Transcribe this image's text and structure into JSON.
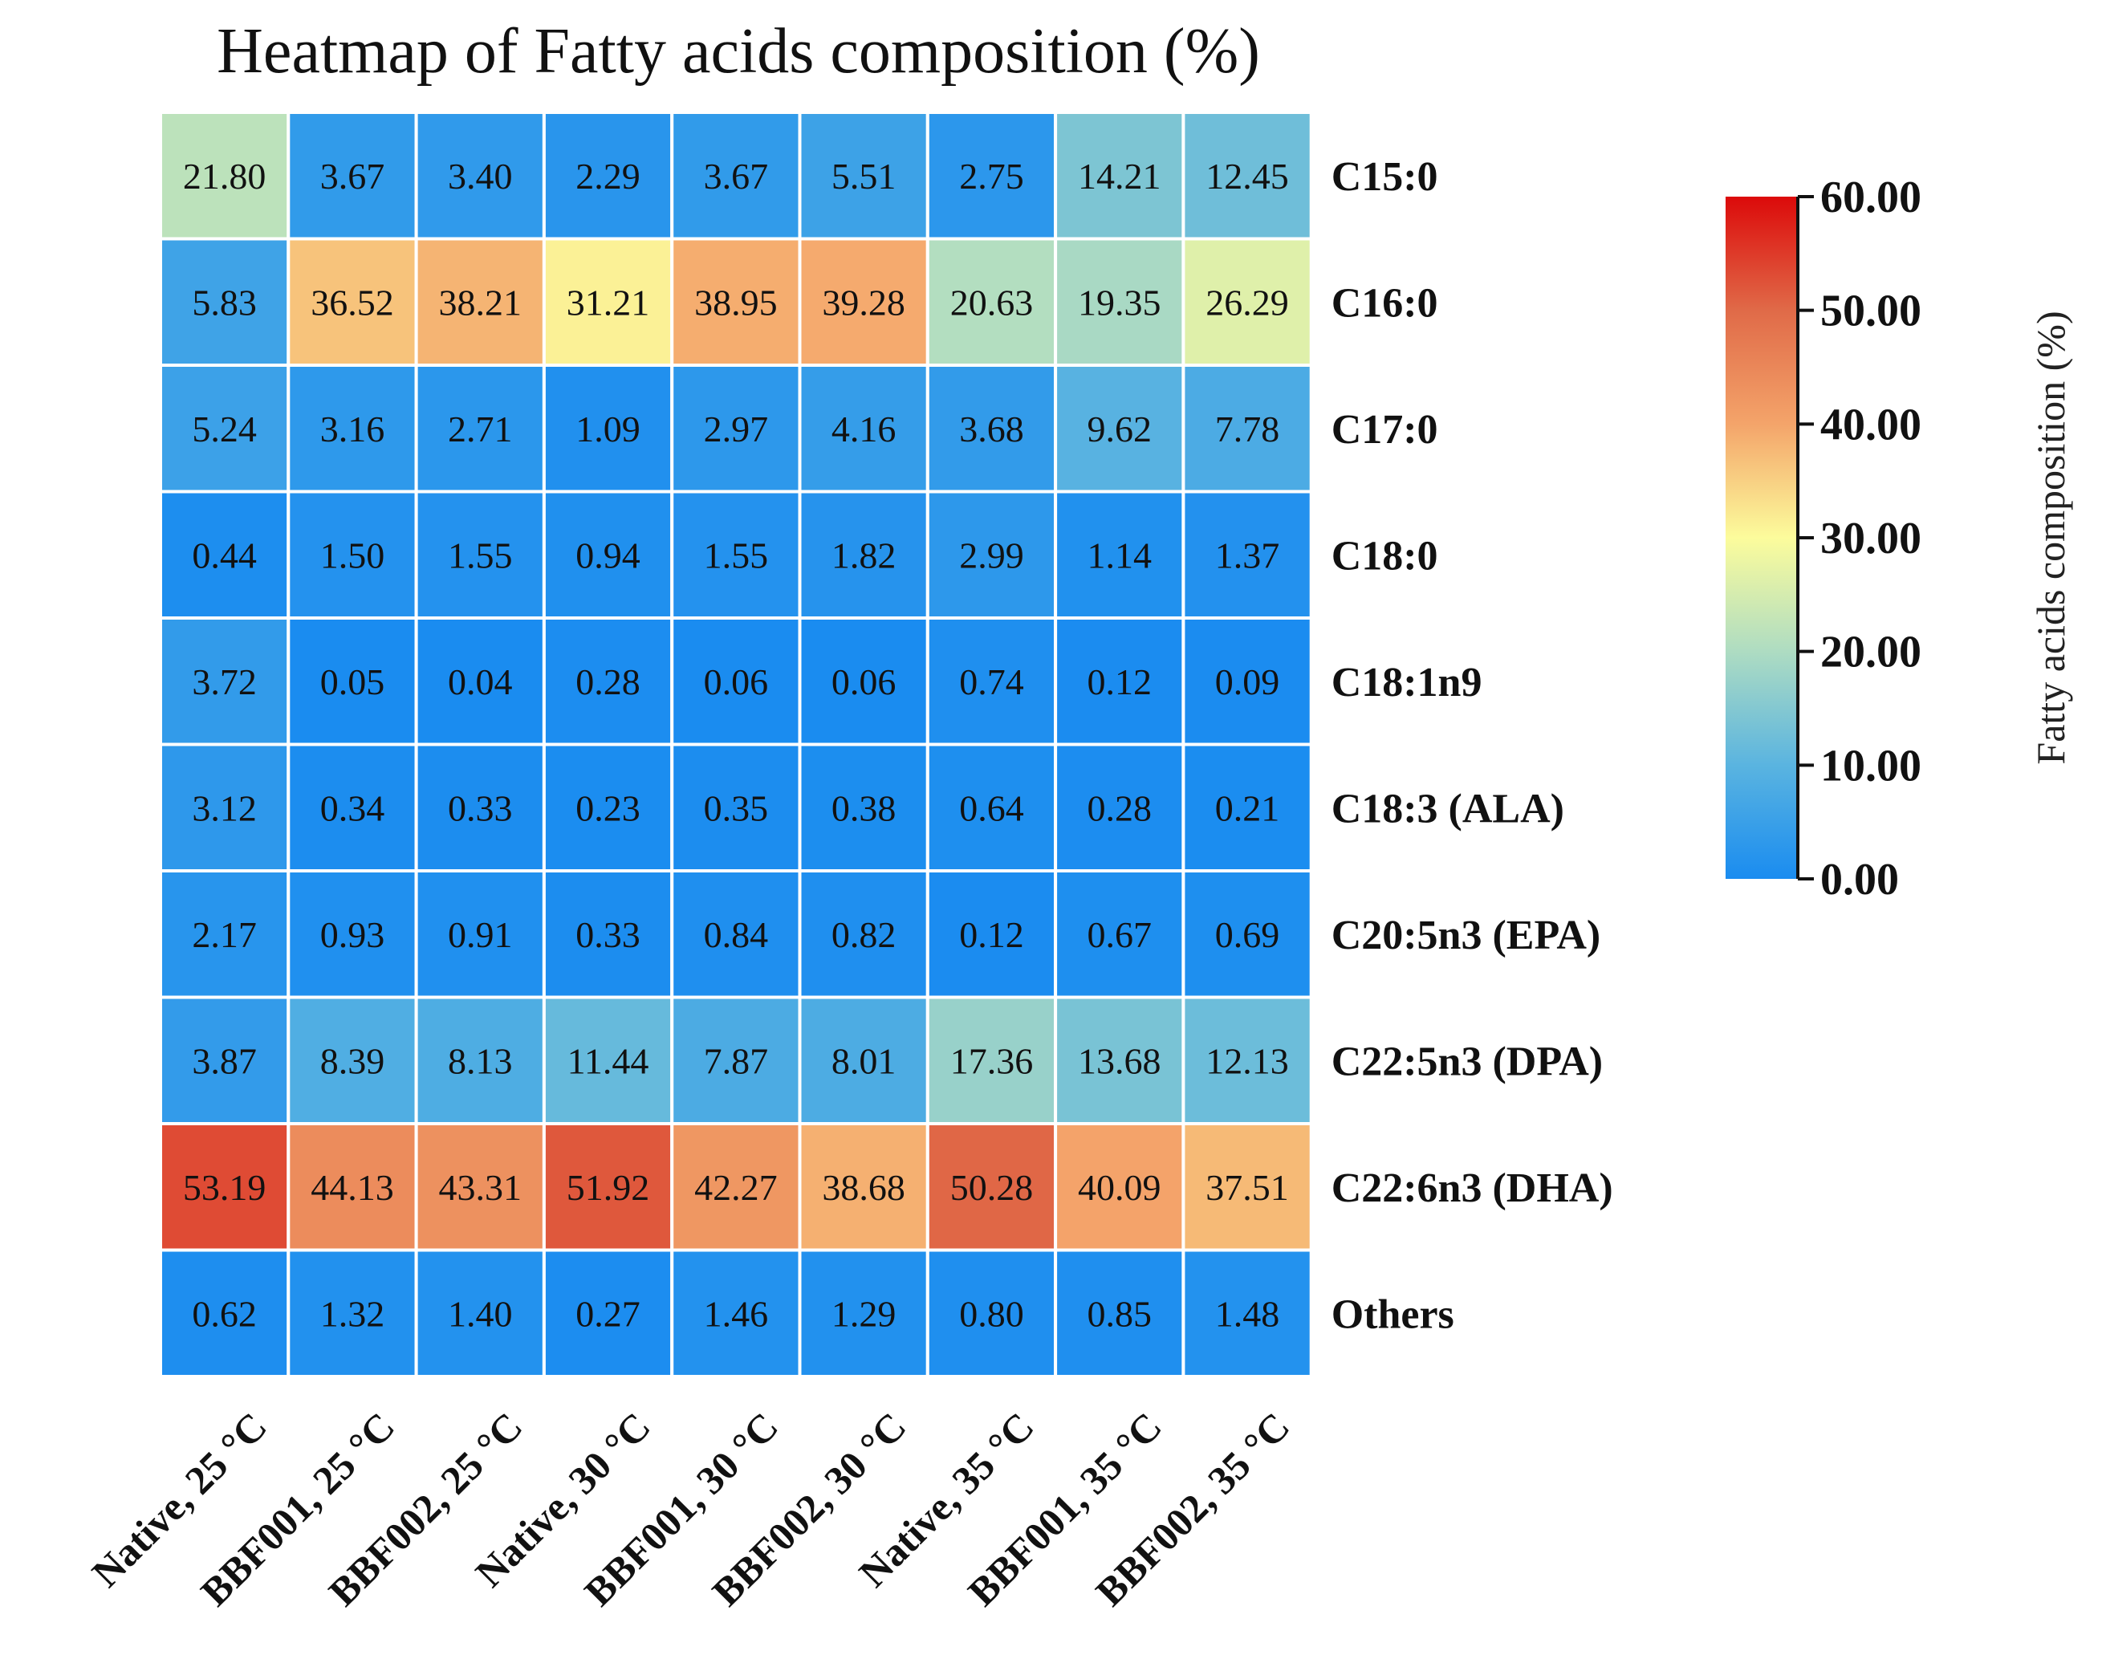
{
  "chart_data": {
    "type": "heatmap",
    "title": "Heatmap of Fatty acids composition (%)",
    "columns": [
      "Native, 25 °C",
      "BBF001, 25 °C",
      "BBF002, 25 °C",
      "Native, 30 °C",
      "BBF001, 30 °C",
      "BBF002, 30 °C",
      "Native, 35 °C",
      "BBF001, 35 °C",
      "BBF002, 35 °C"
    ],
    "rows": [
      "C15:0",
      "C16:0",
      "C17:0",
      "C18:0",
      "C18:1n9",
      "C18:3 (ALA)",
      "C20:5n3 (EPA)",
      "C22:5n3 (DPA)",
      "C22:6n3 (DHA)",
      "Others"
    ],
    "values": [
      [
        "21.80",
        "3.67",
        "3.40",
        "2.29",
        "3.67",
        "5.51",
        "2.75",
        "14.21",
        "12.45"
      ],
      [
        "5.83",
        "36.52",
        "38.21",
        "31.21",
        "38.95",
        "39.28",
        "20.63",
        "19.35",
        "26.29"
      ],
      [
        "5.24",
        "3.16",
        "2.71",
        "1.09",
        "2.97",
        "4.16",
        "3.68",
        "9.62",
        "7.78"
      ],
      [
        "0.44",
        "1.50",
        "1.55",
        "0.94",
        "1.55",
        "1.82",
        "2.99",
        "1.14",
        "1.37"
      ],
      [
        "3.72",
        "0.05",
        "0.04",
        "0.28",
        "0.06",
        "0.06",
        "0.74",
        "0.12",
        "0.09"
      ],
      [
        "3.12",
        "0.34",
        "0.33",
        "0.23",
        "0.35",
        "0.38",
        "0.64",
        "0.28",
        "0.21"
      ],
      [
        "2.17",
        "0.93",
        "0.91",
        "0.33",
        "0.84",
        "0.82",
        "0.12",
        "0.67",
        "0.69"
      ],
      [
        "3.87",
        "8.39",
        "8.13",
        "11.44",
        "7.87",
        "8.01",
        "17.36",
        "13.68",
        "12.13"
      ],
      [
        "53.19",
        "44.13",
        "43.31",
        "51.92",
        "42.27",
        "38.68",
        "50.28",
        "40.09",
        "37.51"
      ],
      [
        "0.62",
        "1.32",
        "1.40",
        "0.27",
        "1.46",
        "1.29",
        "0.80",
        "0.85",
        "1.48"
      ]
    ],
    "colorbar": {
      "label": "Fatty acids composition (%)",
      "range": [
        0,
        60
      ],
      "ticks": [
        "0.00",
        "10.00",
        "20.00",
        "30.00",
        "40.00",
        "50.00",
        "60.00"
      ],
      "colors": [
        "#1a8cf0",
        "#5ab4e0",
        "#aedcc2",
        "#fcfc9c",
        "#f4a46a",
        "#e06a48",
        "#dc0a0a"
      ],
      "placement": "right"
    }
  }
}
